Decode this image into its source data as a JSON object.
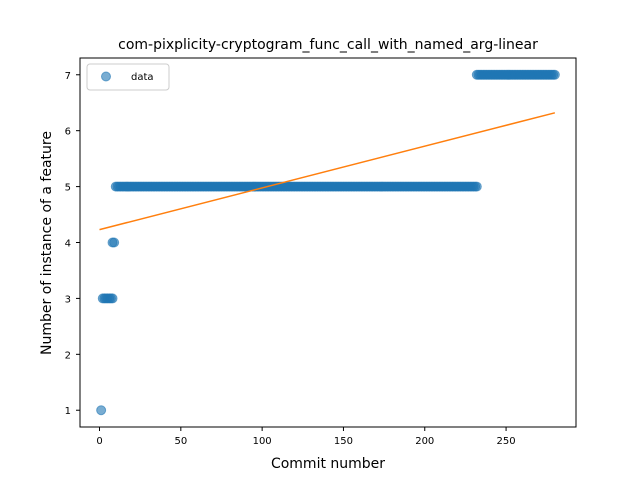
{
  "chart_data": {
    "type": "scatter",
    "title": "com-pixplicity-cryptogram_func_call_with_named_arg-linear",
    "xlabel": "Commit number",
    "ylabel": "Number of instance of a feature",
    "xlim": [
      -12,
      293
    ],
    "ylim": [
      0.7,
      7.3
    ],
    "xticks": [
      0,
      50,
      100,
      150,
      200,
      250
    ],
    "yticks": [
      1,
      2,
      3,
      4,
      5,
      6,
      7
    ],
    "grid": false,
    "legend": {
      "placement": "top-left",
      "entries": [
        "data"
      ]
    },
    "series": [
      {
        "name": "data",
        "kind": "scatter",
        "color": "#1f77b4",
        "segments": [
          {
            "x_start": 1,
            "x_end": 1,
            "y": 1
          },
          {
            "x_start": 2,
            "x_end": 8,
            "y": 3
          },
          {
            "x_start": 8,
            "x_end": 9,
            "y": 4
          },
          {
            "x_start": 10,
            "x_end": 232,
            "y": 5
          },
          {
            "x_start": 232,
            "x_end": 280,
            "y": 7
          }
        ]
      },
      {
        "name": "",
        "kind": "line",
        "color": "#ff7f0e",
        "x": [
          0,
          280
        ],
        "y": [
          4.23,
          6.32
        ]
      }
    ]
  }
}
